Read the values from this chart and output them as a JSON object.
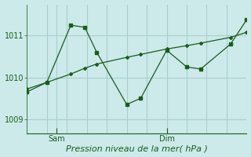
{
  "xlabel": "Pression niveau de la mer( hPa )",
  "bg_color": "#cceaea",
  "line_color": "#1a5c1a",
  "grid_color": "#aacece",
  "yticks": [
    1009,
    1010,
    1011
  ],
  "ylim": [
    1008.65,
    1011.75
  ],
  "xlim": [
    0,
    11
  ],
  "sam_x": 1.5,
  "dim_x": 7.0,
  "jagged_x": [
    0,
    1.0,
    2.2,
    2.9,
    3.5,
    5.0,
    5.7,
    7.0,
    8.0,
    8.7,
    10.2,
    11.0
  ],
  "jagged_y": [
    1009.65,
    1009.88,
    1011.25,
    1011.2,
    1010.6,
    1009.35,
    1009.5,
    1010.65,
    1010.25,
    1010.2,
    1010.8,
    1011.38
  ],
  "trend_x": [
    0,
    1.0,
    2.2,
    2.9,
    3.5,
    5.0,
    5.7,
    7.0,
    8.0,
    8.7,
    10.2,
    11.0
  ],
  "trend_y": [
    1009.72,
    1009.88,
    1010.08,
    1010.22,
    1010.32,
    1010.48,
    1010.55,
    1010.68,
    1010.76,
    1010.82,
    1010.96,
    1011.08
  ],
  "tick_fontsize": 7,
  "label_fontsize": 8
}
